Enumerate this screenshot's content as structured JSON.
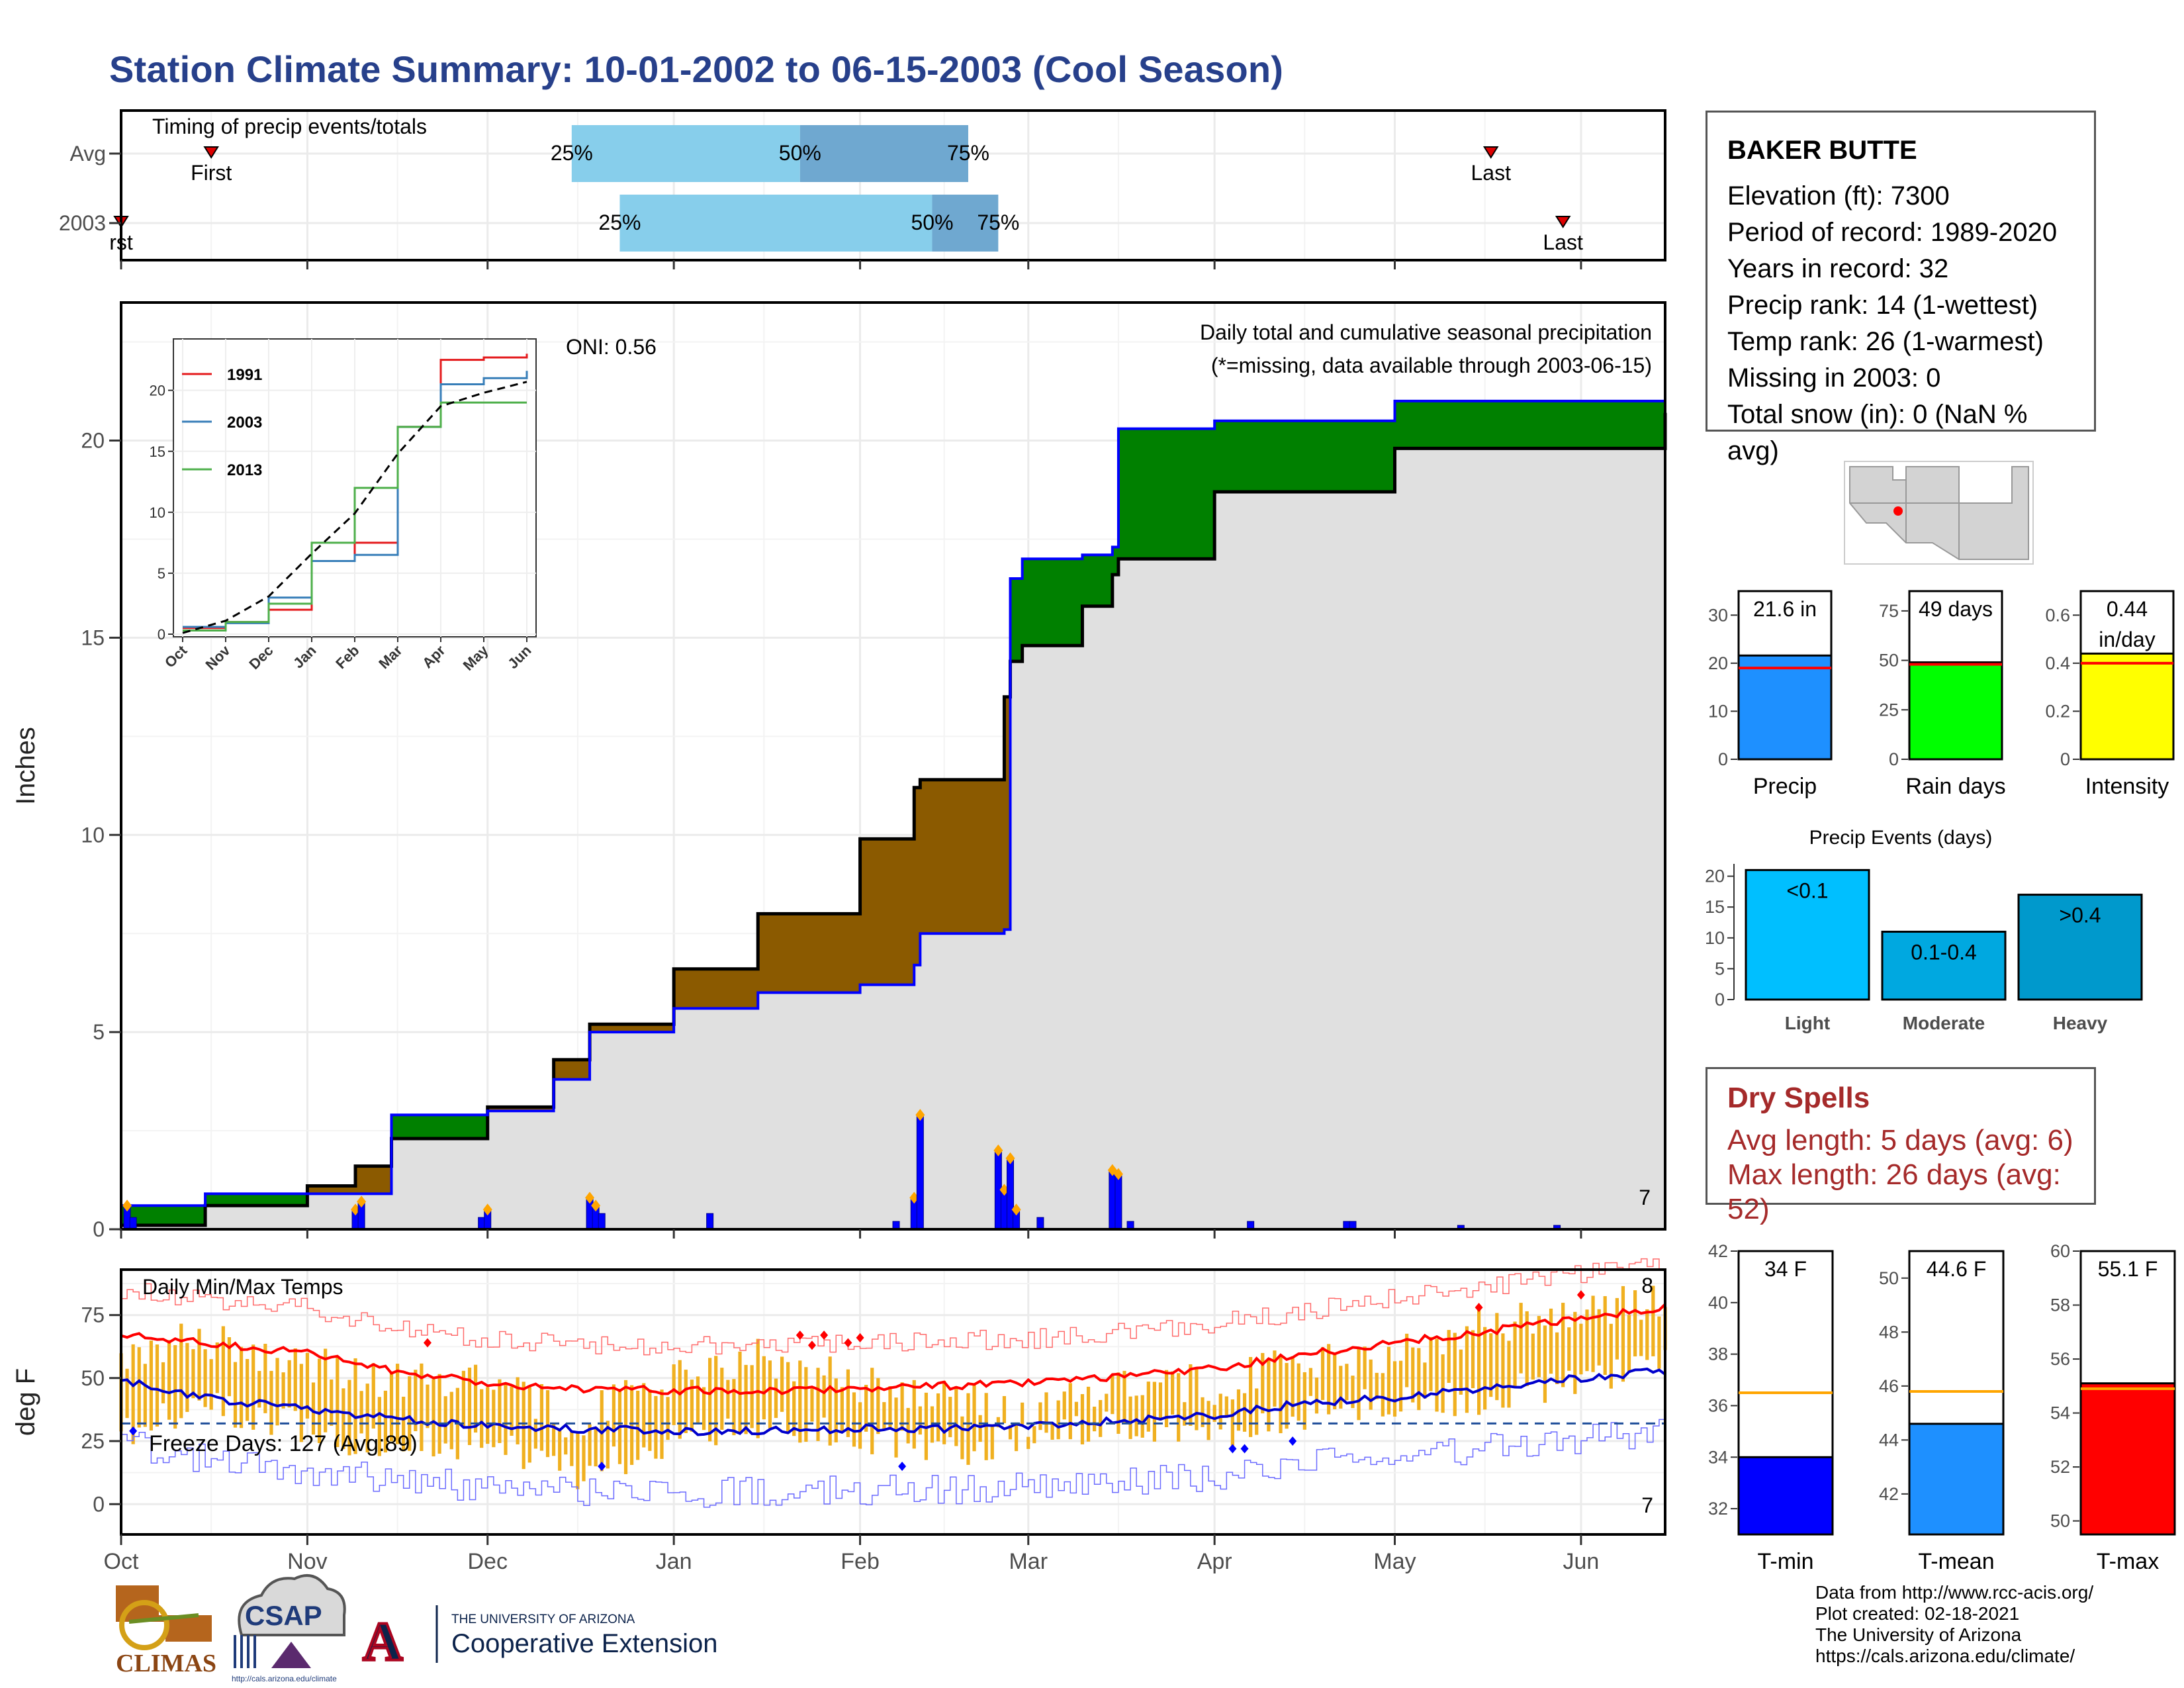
{
  "title": "Station Climate Summary: 10-01-2002 to 06-15-2003 (Cool Season)",
  "timing": {
    "label": "Timing of precip events/totals",
    "rows": [
      {
        "name": "Avg",
        "first_label": "First",
        "last_label": "Last",
        "first_date": "2002-10-16",
        "last_date": "2003-05-17",
        "p25_date": "2002-12-15",
        "p50_date": "2003-01-22",
        "p75_date": "2003-02-19"
      },
      {
        "name": "2003",
        "first_label": "rst",
        "last_label": "Last",
        "first_date": "2002-10-01",
        "last_date": "2003-05-29",
        "p25_date": "2002-12-23",
        "p50_date": "2003-02-13",
        "p75_date": "2003-02-24"
      }
    ],
    "q25": "25%",
    "q50": "50%",
    "q75": "75%",
    "colors": {
      "outer": "#87ceeb",
      "inner": "#6fa8d0",
      "marker": "#dd0000"
    }
  },
  "precip_panel": {
    "ylabel": "Inches",
    "heading": "Daily total and cumulative seasonal precipitation",
    "missing_note": "(*=missing, data available through 2003-06-15)",
    "oni": "ONI: 0.56",
    "missing_count": "7",
    "colors": {
      "surplus": "#008000",
      "deficit": "#8b5a00",
      "normal_fill": "#e0e0e0",
      "obs_line": "#0000ff",
      "daily_bar": "#0000ff",
      "extreme": "#ffa500"
    }
  },
  "temp_panel": {
    "ylabel": "deg F",
    "heading": "Daily Min/Max Temps",
    "freeze_label": "Freeze Days: 127 (Avg:89)",
    "count_hi": "8",
    "count_lo": "7",
    "colors": {
      "bar": "#f0b020",
      "max_avg": "#ff0000",
      "min_avg": "#0000cc",
      "max_rec": "#ff6b6b",
      "min_rec": "#6b6bff",
      "freeze": "#1f4e9a"
    }
  },
  "x_axis": {
    "ticks": [
      "Oct",
      "Nov",
      "Dec",
      "Jan",
      "Feb",
      "Mar",
      "Apr",
      "May",
      "Jun"
    ]
  },
  "chart_data": [
    {
      "type": "line",
      "title": "Daily total and cumulative seasonal precipitation",
      "ylabel": "Inches",
      "ylim": [
        0,
        23.5
      ],
      "x_type": "date",
      "x": [
        "2002-10-01",
        "2002-10-15",
        "2002-11-01",
        "2002-11-09",
        "2002-11-15",
        "2002-12-01",
        "2002-12-12",
        "2002-12-18",
        "2003-01-01",
        "2003-01-15",
        "2003-02-01",
        "2003-02-10",
        "2003-02-11",
        "2003-02-25",
        "2003-02-26",
        "2003-02-28",
        "2003-03-10",
        "2003-03-15",
        "2003-03-16",
        "2003-04-01",
        "2003-05-01",
        "2003-06-15"
      ],
      "series": [
        {
          "name": "2003",
          "values": [
            0.6,
            0.9,
            0.9,
            0.9,
            2.9,
            3.0,
            3.8,
            5.0,
            5.6,
            6.0,
            6.2,
            6.7,
            7.5,
            7.6,
            16.5,
            17.0,
            17.1,
            17.3,
            20.3,
            20.5,
            21.0,
            21.6
          ]
        },
        {
          "name": "Avg",
          "values": [
            0.1,
            0.6,
            1.1,
            1.6,
            2.3,
            3.1,
            4.3,
            5.2,
            6.6,
            8.0,
            9.9,
            11.2,
            11.4,
            13.5,
            14.4,
            14.8,
            15.8,
            16.6,
            17.0,
            18.7,
            19.8,
            20.7
          ]
        }
      ],
      "daily_bars": [
        {
          "x": "2002-10-02",
          "value": 0.6
        },
        {
          "x": "2002-10-03",
          "value": 0.3
        },
        {
          "x": "2002-11-09",
          "value": 0.5
        },
        {
          "x": "2002-11-10",
          "value": 0.7
        },
        {
          "x": "2002-11-30",
          "value": 0.3
        },
        {
          "x": "2002-12-01",
          "value": 0.5
        },
        {
          "x": "2002-12-18",
          "value": 0.8
        },
        {
          "x": "2002-12-19",
          "value": 0.6
        },
        {
          "x": "2002-12-20",
          "value": 0.4
        },
        {
          "x": "2003-01-07",
          "value": 0.4
        },
        {
          "x": "2003-02-07",
          "value": 0.2
        },
        {
          "x": "2003-02-10",
          "value": 0.8
        },
        {
          "x": "2003-02-11",
          "value": 2.9
        },
        {
          "x": "2003-02-24",
          "value": 2.0
        },
        {
          "x": "2003-02-25",
          "value": 1.0
        },
        {
          "x": "2003-02-26",
          "value": 1.8
        },
        {
          "x": "2003-02-27",
          "value": 0.5
        },
        {
          "x": "2003-03-03",
          "value": 0.3
        },
        {
          "x": "2003-03-15",
          "value": 1.5
        },
        {
          "x": "2003-03-16",
          "value": 1.4
        },
        {
          "x": "2003-03-18",
          "value": 0.2
        },
        {
          "x": "2003-04-07",
          "value": 0.2
        },
        {
          "x": "2003-04-23",
          "value": 0.2
        },
        {
          "x": "2003-04-24",
          "value": 0.2
        },
        {
          "x": "2003-05-12",
          "value": 0.1
        },
        {
          "x": "2003-05-28",
          "value": 0.1
        }
      ]
    },
    {
      "type": "line",
      "title": "Daily Min/Max Temps",
      "ylabel": "deg F",
      "ylim": [
        -12,
        93
      ],
      "x_type": "date",
      "x": [
        "2002-10-01",
        "2002-10-15",
        "2002-11-01",
        "2002-11-15",
        "2002-12-01",
        "2002-12-15",
        "2003-01-01",
        "2003-01-15",
        "2003-02-01",
        "2003-02-15",
        "2003-03-01",
        "2003-03-15",
        "2003-04-01",
        "2003-04-15",
        "2003-05-01",
        "2003-05-15",
        "2003-06-01",
        "2003-06-15"
      ],
      "series": [
        {
          "name": "Max avg",
          "values": [
            67,
            64,
            60,
            53,
            48,
            46,
            45,
            45,
            46,
            47,
            48,
            50,
            54,
            59,
            64,
            68,
            74,
            78
          ]
        },
        {
          "name": "Min avg",
          "values": [
            49,
            42,
            38,
            34,
            31,
            30,
            29,
            29,
            30,
            30,
            31,
            33,
            35,
            40,
            42,
            46,
            50,
            53
          ]
        },
        {
          "name": "Max",
          "values": [
            60,
            66,
            56,
            48,
            53,
            33,
            50,
            58,
            48,
            44,
            33,
            50,
            47,
            56,
            58,
            70,
            77,
            80
          ]
        },
        {
          "name": "Min",
          "values": [
            28,
            40,
            30,
            22,
            26,
            12,
            25,
            32,
            26,
            20,
            28,
            32,
            28,
            36,
            40,
            42,
            50,
            55
          ]
        }
      ],
      "freeze_line": 32
    },
    {
      "type": "line",
      "title": "",
      "x": [
        "Oct",
        "Nov",
        "Dec",
        "Jan",
        "Feb",
        "Mar",
        "Apr",
        "May",
        "Jun"
      ],
      "ylim": [
        0,
        23
      ],
      "series": [
        {
          "name": "1991",
          "values": [
            0.5,
            1.0,
            2.0,
            6.0,
            7.5,
            17.0,
            22.5,
            22.7,
            23.0
          ]
        },
        {
          "name": "2003",
          "values": [
            0.6,
            0.9,
            3.0,
            6.0,
            6.5,
            17.0,
            20.5,
            21.0,
            21.6
          ]
        },
        {
          "name": "2013",
          "values": [
            0.3,
            1.0,
            2.5,
            7.5,
            12.0,
            17.0,
            19.0,
            19.0,
            19.0
          ]
        },
        {
          "name": "Avg",
          "values": [
            0.1,
            1.1,
            3.1,
            6.6,
            9.9,
            14.8,
            18.7,
            19.8,
            20.7
          ]
        }
      ]
    },
    {
      "type": "bar",
      "categories": [
        "Precip",
        "Rain days",
        "Intensity"
      ],
      "values": [
        21.6,
        49,
        0.44
      ],
      "labels": [
        "21.6 in",
        "49 days",
        "0.44 in/day"
      ],
      "averages": [
        19,
        48,
        0.4
      ],
      "ylims": [
        [
          0,
          35
        ],
        [
          0,
          85
        ],
        [
          0,
          0.7
        ]
      ],
      "ticks": [
        [
          0,
          10,
          20,
          30
        ],
        [
          0,
          25,
          50,
          75
        ],
        [
          0.0,
          0.2,
          0.4,
          0.6
        ]
      ],
      "colors": [
        "#1e90ff",
        "#00ff00",
        "#ffff00"
      ]
    },
    {
      "type": "bar",
      "title": "Precip Events (days)",
      "categories": [
        "Light",
        "Moderate",
        "Heavy"
      ],
      "values": [
        21,
        11,
        17
      ],
      "labels": [
        "<0.1",
        "0.1-0.4",
        ">0.4"
      ],
      "ylim": [
        0,
        22
      ],
      "ticks": [
        0,
        5,
        10,
        15,
        20
      ],
      "colors": [
        "#00bfff",
        "#00a8e0",
        "#0099cc"
      ]
    },
    {
      "type": "bar",
      "categories": [
        "T-min",
        "T-mean",
        "T-max"
      ],
      "values": [
        34,
        44.6,
        55.1
      ],
      "labels": [
        "34 F",
        "44.6 F",
        "55.1 F"
      ],
      "averages": [
        36.5,
        45.8,
        54.9
      ],
      "ylims": [
        [
          31,
          42
        ],
        [
          40.5,
          51
        ],
        [
          49.5,
          60
        ]
      ],
      "ticks": [
        [
          32,
          34,
          36,
          38,
          40,
          42
        ],
        [
          42,
          44,
          46,
          48,
          50
        ],
        [
          50,
          52,
          54,
          56,
          58,
          60
        ]
      ],
      "colors": [
        "#0000ff",
        "#1e90ff",
        "#ff0000"
      ]
    }
  ],
  "station": {
    "name": "BAKER BUTTE",
    "lines": [
      "Elevation (ft): 7300",
      "Period of record: 1989-2020",
      "Years in record: 32",
      "Precip rank: 14 (1-wettest)",
      "Temp rank: 26 (1-warmest)",
      "Missing in 2003: 0",
      "Total snow (in): 0 (NaN % avg)"
    ]
  },
  "dry_spells": {
    "heading": "Dry Spells",
    "avg": "Avg length: 5 days (avg: 6)",
    "max": "Max length: 26 days (avg: 52)"
  },
  "credits": [
    "Data from http://www.rcc-acis.org/",
    "Plot created: 02-18-2021",
    "The University of Arizona",
    "https://cals.arizona.edu/climate/"
  ],
  "logos": {
    "climas": "CLIMAS",
    "csap": "CSAP",
    "csap_url": "http://cals.arizona.edu/climate",
    "ua_small": "THE UNIVERSITY OF ARIZONA",
    "ua_big": "Cooperative Extension",
    "ua_letter": "A"
  }
}
